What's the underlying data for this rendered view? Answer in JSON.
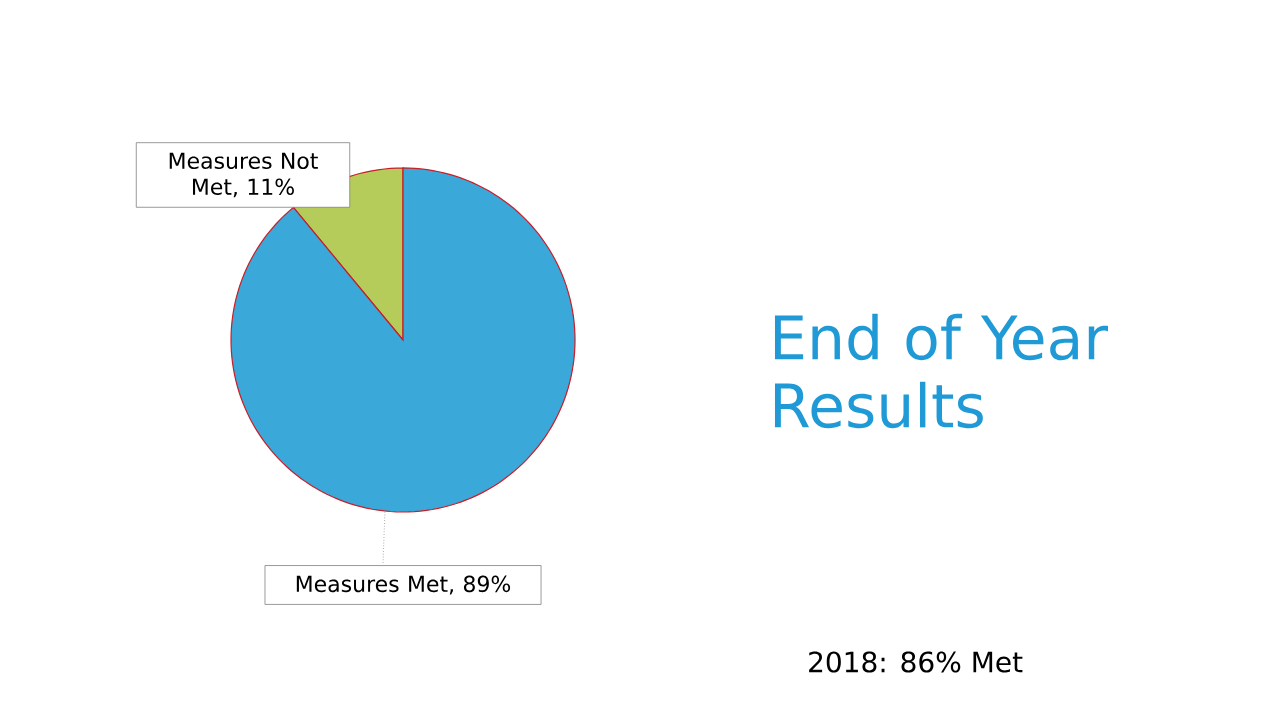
{
  "chart_data": {
    "type": "pie",
    "title": "End of Year Results",
    "categories": [
      "Measures Not Met",
      "Measures Met"
    ],
    "value_labels": [
      ", 11%",
      ", 89%"
    ],
    "values": [
      11,
      89
    ],
    "colors": [
      "#b5cc5a",
      "#3aa8d8"
    ],
    "annotations": [
      "2018:  86% Met"
    ]
  }
}
